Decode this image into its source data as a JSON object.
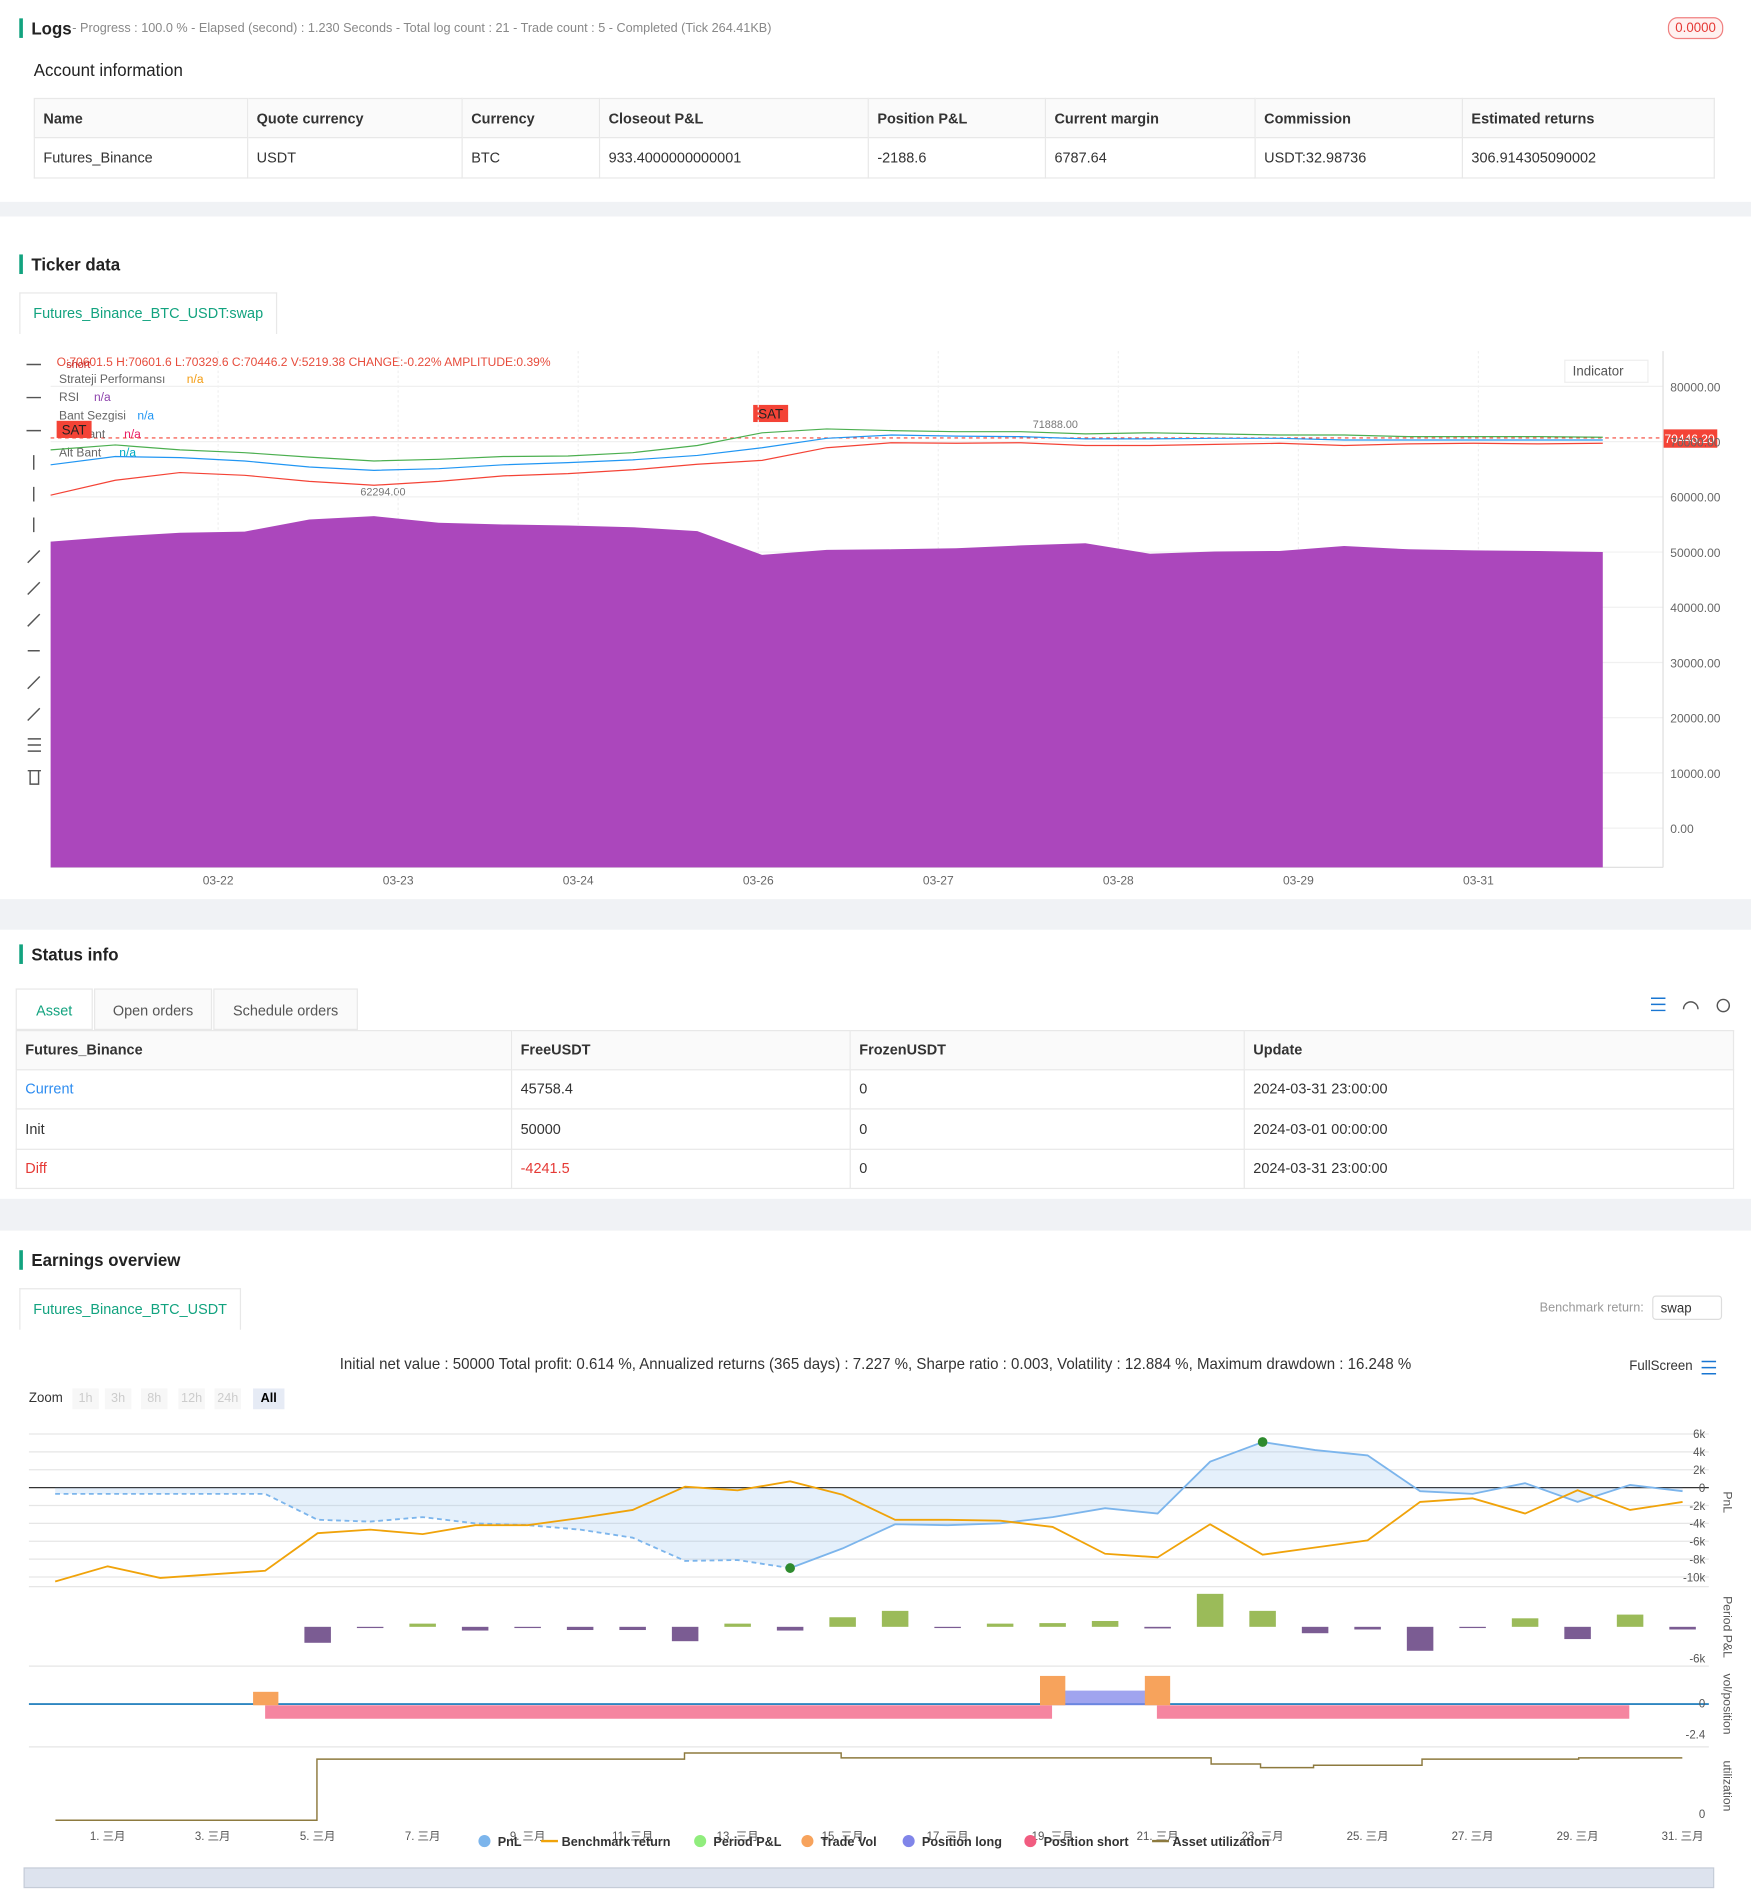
{
  "logs": {
    "title": "Logs",
    "status": "- Progress : 100.0 % - Elapsed (second) : 1.230  Seconds - Total log count : 21 - Trade count : 5 - Completed (Tick 264.41KB)",
    "badge": "0.0000"
  },
  "account": {
    "title": "Account information",
    "columns": [
      "Name",
      "Quote currency",
      "Currency",
      "Closeout P&L",
      "Position P&L",
      "Current margin",
      "Commission",
      "Estimated returns"
    ],
    "rows": [
      [
        "Futures_Binance",
        "USDT",
        "BTC",
        "933.4000000000001",
        "-2188.6",
        "6787.64",
        "USDT:32.98736",
        "306.914305090002"
      ]
    ]
  },
  "ticker": {
    "title": "Ticker data",
    "tab": "Futures_Binance_BTC_USDT:swap",
    "ohlc": "O:70601.5 H:70601.6 L:70329.6 C:70446.2 V:5219.38 CHANGE:-0.22% AMPLITUDE:0.39%",
    "legend": [
      {
        "name": "Strateji Performansı",
        "value": "n/a"
      },
      {
        "name": "RSI",
        "value": "n/a"
      },
      {
        "name": "Bant Sezgisi",
        "value": "n/a"
      },
      {
        "name": "Üst Bant",
        "value": "n/a"
      },
      {
        "name": "Alt Bant",
        "value": "n/a"
      }
    ],
    "indicator_button": "Indicator",
    "price_label": "70446.20",
    "annotations": [
      "SAT",
      "SAT",
      "short",
      "71888.00",
      "62294.00"
    ]
  },
  "status": {
    "title": "Status info",
    "tabs": [
      "Asset",
      "Open orders",
      "Schedule orders"
    ],
    "columns": [
      "Futures_Binance",
      "FreeUSDT",
      "FrozenUSDT",
      "Update"
    ],
    "rows": [
      [
        "Current",
        "45758.4",
        "0",
        "2024-03-31 23:00:00"
      ],
      [
        "Init",
        "50000",
        "0",
        "2024-03-01 00:00:00"
      ],
      [
        "Diff",
        "-4241.5",
        "0",
        "2024-03-31 23:00:00"
      ]
    ]
  },
  "earnings": {
    "title": "Earnings overview",
    "tab": "Futures_Binance_BTC_USDT",
    "benchmark_label": "Benchmark return:",
    "benchmark_value": "swap",
    "summary": "Initial net value : 50000 Total profit: 0.614 %, Annualized returns (365 days) : 7.227 %, Sharpe ratio : 0.003, Volatility : 12.884 %, Maximum drawdown : 16.248 %",
    "fullscreen": "FullScreen",
    "zoom_label": "Zoom",
    "zoom": [
      "1h",
      "3h",
      "8h",
      "12h",
      "24h",
      "All"
    ]
  },
  "chart_data": [
    {
      "type": "line",
      "xticks": [
        "03-22",
        "03-23",
        "03-24",
        "03-26",
        "03-27",
        "03-28",
        "03-29",
        "03-31"
      ],
      "ylim": [
        -7100,
        86400
      ],
      "yticks": [
        {
          "value": 0,
          "label": "0.00"
        },
        {
          "value": 10000,
          "label": "10000.00"
        },
        {
          "value": 20000,
          "label": "20000.00"
        },
        {
          "value": 30000,
          "label": "30000.00"
        },
        {
          "value": 40000,
          "label": "40000.00"
        },
        {
          "value": 50000,
          "label": "50000.00"
        },
        {
          "value": 60000,
          "label": "60000.00"
        },
        {
          "value": 70000,
          "label": "70000.00"
        },
        {
          "value": 80000,
          "label": "80000.00"
        }
      ],
      "grid": true,
      "series": [
        {
          "kind": "area",
          "color": "#ab47bc",
          "values": [
            51900,
            52800,
            53500,
            53700,
            55900,
            56500,
            55300,
            55000,
            54800,
            54500,
            53800,
            49500,
            50400,
            50500,
            50700,
            51200,
            51600,
            49700,
            50100,
            50200,
            51100,
            50500,
            50300,
            50200,
            50000
          ]
        },
        {
          "kind": "line",
          "color": "#4caf50",
          "values": [
            68500,
            69400,
            68500,
            68000,
            67200,
            66500,
            66800,
            67300,
            67400,
            68000,
            69300,
            71600,
            72300,
            72000,
            71800,
            71800,
            71400,
            71600,
            71400,
            71200,
            71200,
            70900,
            70900,
            70900,
            70800
          ]
        },
        {
          "kind": "line",
          "color": "#2196f3",
          "values": [
            65800,
            67300,
            67100,
            66500,
            65400,
            64800,
            65100,
            65800,
            66200,
            66700,
            67500,
            68900,
            70600,
            71200,
            71000,
            70900,
            70500,
            70500,
            70600,
            70600,
            70300,
            70300,
            70300,
            70300,
            70300
          ]
        },
        {
          "kind": "line",
          "color": "#f44336",
          "values": [
            60300,
            63000,
            64400,
            63900,
            62800,
            62100,
            62800,
            63800,
            64200,
            64900,
            65900,
            66600,
            68900,
            69800,
            69700,
            69800,
            69300,
            69300,
            69500,
            69700,
            69300,
            69600,
            69700,
            69600,
            69700
          ]
        }
      ]
    },
    {
      "type": "line",
      "x": [
        0,
        1,
        2,
        3,
        4,
        5,
        6,
        7,
        8,
        9,
        10,
        11,
        12,
        13,
        14,
        15,
        16,
        17,
        18,
        19,
        20,
        21,
        22,
        23,
        24,
        25,
        26,
        27,
        28,
        29,
        30,
        31
      ],
      "xlim": [
        -0.5,
        31.5
      ],
      "xticks": [
        {
          "value": 1,
          "label": "1. 三月"
        },
        {
          "value": 3,
          "label": "3. 三月"
        },
        {
          "value": 5,
          "label": "5. 三月"
        },
        {
          "value": 7,
          "label": "7. 三月"
        },
        {
          "value": 9,
          "label": "9. 三月"
        },
        {
          "value": 11,
          "label": "11. 三月"
        },
        {
          "value": 13,
          "label": "13. 三月"
        },
        {
          "value": 15,
          "label": "15. 三月"
        },
        {
          "value": 17,
          "label": "17. 三月"
        },
        {
          "value": 19,
          "label": "19. 三月"
        },
        {
          "value": 21,
          "label": "21. 三月"
        },
        {
          "value": 23,
          "label": "23. 三月"
        },
        {
          "value": 25,
          "label": "25. 三月"
        },
        {
          "value": 27,
          "label": "27. 三月"
        },
        {
          "value": 29,
          "label": "29. 三月"
        },
        {
          "value": 31,
          "label": "31. 三月"
        }
      ],
      "ylim": [
        -10800,
        7260
      ],
      "yticks": [
        {
          "value": 6000,
          "label": "6k"
        },
        {
          "value": 4000,
          "label": "4k"
        },
        {
          "value": 2000,
          "label": "2k"
        },
        0,
        {
          "value": -2000,
          "label": "-2k"
        },
        {
          "value": -4000,
          "label": "-4k"
        },
        {
          "value": -6000,
          "label": "-6k"
        },
        {
          "value": -8000,
          "label": "-8k"
        },
        {
          "value": -10000,
          "label": "-10k"
        }
      ],
      "y_label": "PnL",
      "series": [
        {
          "name": "PnL",
          "color": "#7cb5ec",
          "values": [
            -700,
            -700,
            -700,
            -700,
            -700,
            -3600,
            -3800,
            -3300,
            -4000,
            -4200,
            -4700,
            -5600,
            -8200,
            -8100,
            -9000,
            -6800,
            -4100,
            -4200,
            -4000,
            -3300,
            -2300,
            -2900,
            2900,
            5100,
            4200,
            3600,
            -400,
            -700,
            500,
            -1600,
            300,
            -400
          ]
        },
        {
          "name": "Benchmark return",
          "color": "#f0a30a",
          "values": [
            -10500,
            -8800,
            -10100,
            -9700,
            -9300,
            -5100,
            -4700,
            -5200,
            -4200,
            -4200,
            -3400,
            -2500,
            100,
            -300,
            700,
            -800,
            -3600,
            -3600,
            -3700,
            -4400,
            -7400,
            -7800,
            -4100,
            -7500,
            -6700,
            -5900,
            -1600,
            -1200,
            -2900,
            -300,
            -2500,
            -1600
          ]
        }
      ],
      "period_pnl": {
        "name": "Period P&L",
        "y_label": "Period P&L",
        "up_color": "#9bbb59",
        "down_color": "#7b5c93",
        "ylim": [
          -6700,
          7100
        ],
        "yticks": [
          {
            "value": -6000,
            "label": "-6k"
          }
        ],
        "values": [
          null,
          null,
          null,
          null,
          null,
          -3000,
          -200,
          600,
          -700,
          -200,
          -600,
          -600,
          -2700,
          600,
          -700,
          1800,
          3000,
          -200,
          600,
          700,
          1100,
          -300,
          6200,
          3000,
          -1200,
          -500,
          -4500,
          -200,
          1600,
          -2300,
          2300,
          -500
        ]
      },
      "extra_series": [
        {
          "name": "Trade Vol",
          "color": "#f7a35c"
        },
        {
          "name": "Position long",
          "color": "#8085e9"
        },
        {
          "name": "Position short",
          "color": "#f15c80"
        },
        {
          "name": "Asset utilization",
          "color": "#8d7a3f"
        }
      ],
      "panel_labels": [
        "vol/position",
        "utilization"
      ],
      "panel_ticks": [
        "0",
        "-2.4",
        "0"
      ]
    }
  ]
}
